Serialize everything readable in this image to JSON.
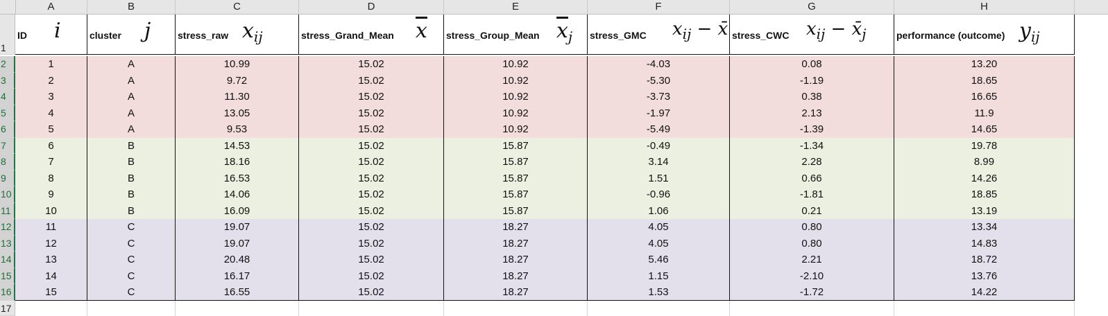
{
  "columns": [
    "A",
    "B",
    "C",
    "D",
    "E",
    "F",
    "G",
    "H"
  ],
  "row_numbers": [
    "1",
    "2",
    "3",
    "4",
    "5",
    "6",
    "7",
    "8",
    "9",
    "10",
    "11",
    "12",
    "13",
    "14",
    "15",
    "16",
    "17"
  ],
  "headers": [
    {
      "label": "ID",
      "math": "i",
      "math_kind": "plain"
    },
    {
      "label": "cluster",
      "math": "j",
      "math_kind": "plain"
    },
    {
      "label": "stress_raw",
      "math": "x",
      "sub": "ij",
      "math_kind": "sub"
    },
    {
      "label": "stress_Grand_Mean",
      "math": "x",
      "math_kind": "bar"
    },
    {
      "label": "stress_Group_Mean",
      "math": "x",
      "sub": "j",
      "math_kind": "barsub"
    },
    {
      "label": "stress_GMC",
      "math": "x",
      "sub": "ij",
      "tail": " − x̄",
      "math_kind": "gmc"
    },
    {
      "label": "stress_CWC",
      "math": "x",
      "sub": "ij",
      "tail": " − x̄",
      "tailsub": "j",
      "math_kind": "cwc"
    },
    {
      "label": "performance (outcome)",
      "math": "y",
      "sub": "ij",
      "math_kind": "sub"
    }
  ],
  "rows": [
    {
      "group": "A",
      "cells": [
        "1",
        "A",
        "10.99",
        "15.02",
        "10.92",
        "-4.03",
        "0.08",
        "13.20"
      ]
    },
    {
      "group": "A",
      "cells": [
        "2",
        "A",
        "9.72",
        "15.02",
        "10.92",
        "-5.30",
        "-1.19",
        "18.65"
      ]
    },
    {
      "group": "A",
      "cells": [
        "3",
        "A",
        "11.30",
        "15.02",
        "10.92",
        "-3.73",
        "0.38",
        "16.65"
      ]
    },
    {
      "group": "A",
      "cells": [
        "4",
        "A",
        "13.05",
        "15.02",
        "10.92",
        "-1.97",
        "2.13",
        "11.9"
      ]
    },
    {
      "group": "A",
      "cells": [
        "5",
        "A",
        "9.53",
        "15.02",
        "10.92",
        "-5.49",
        "-1.39",
        "14.65"
      ]
    },
    {
      "group": "B",
      "cells": [
        "6",
        "B",
        "14.53",
        "15.02",
        "15.87",
        "-0.49",
        "-1.34",
        "19.78"
      ]
    },
    {
      "group": "B",
      "cells": [
        "7",
        "B",
        "18.16",
        "15.02",
        "15.87",
        "3.14",
        "2.28",
        "8.99"
      ]
    },
    {
      "group": "B",
      "cells": [
        "8",
        "B",
        "16.53",
        "15.02",
        "15.87",
        "1.51",
        "0.66",
        "14.26"
      ]
    },
    {
      "group": "B",
      "cells": [
        "9",
        "B",
        "14.06",
        "15.02",
        "15.87",
        "-0.96",
        "-1.81",
        "18.85"
      ]
    },
    {
      "group": "B",
      "cells": [
        "10",
        "B",
        "16.09",
        "15.02",
        "15.87",
        "1.06",
        "0.21",
        "13.19"
      ]
    },
    {
      "group": "C",
      "cells": [
        "11",
        "C",
        "19.07",
        "15.02",
        "18.27",
        "4.05",
        "0.80",
        "13.34"
      ]
    },
    {
      "group": "C",
      "cells": [
        "12",
        "C",
        "19.07",
        "15.02",
        "18.27",
        "4.05",
        "0.80",
        "14.83"
      ]
    },
    {
      "group": "C",
      "cells": [
        "13",
        "C",
        "20.48",
        "15.02",
        "18.27",
        "5.46",
        "2.21",
        "18.72"
      ]
    },
    {
      "group": "C",
      "cells": [
        "14",
        "C",
        "16.17",
        "15.02",
        "18.27",
        "1.15",
        "-2.10",
        "13.76"
      ]
    },
    {
      "group": "C",
      "cells": [
        "15",
        "C",
        "16.55",
        "15.02",
        "18.27",
        "1.53",
        "-1.72",
        "14.22"
      ]
    }
  ],
  "colors": {
    "group_A": "#f2dcdc",
    "group_B": "#ebf0e1",
    "group_C": "#e3dfeb",
    "header_bg": "#e6e6e6"
  }
}
